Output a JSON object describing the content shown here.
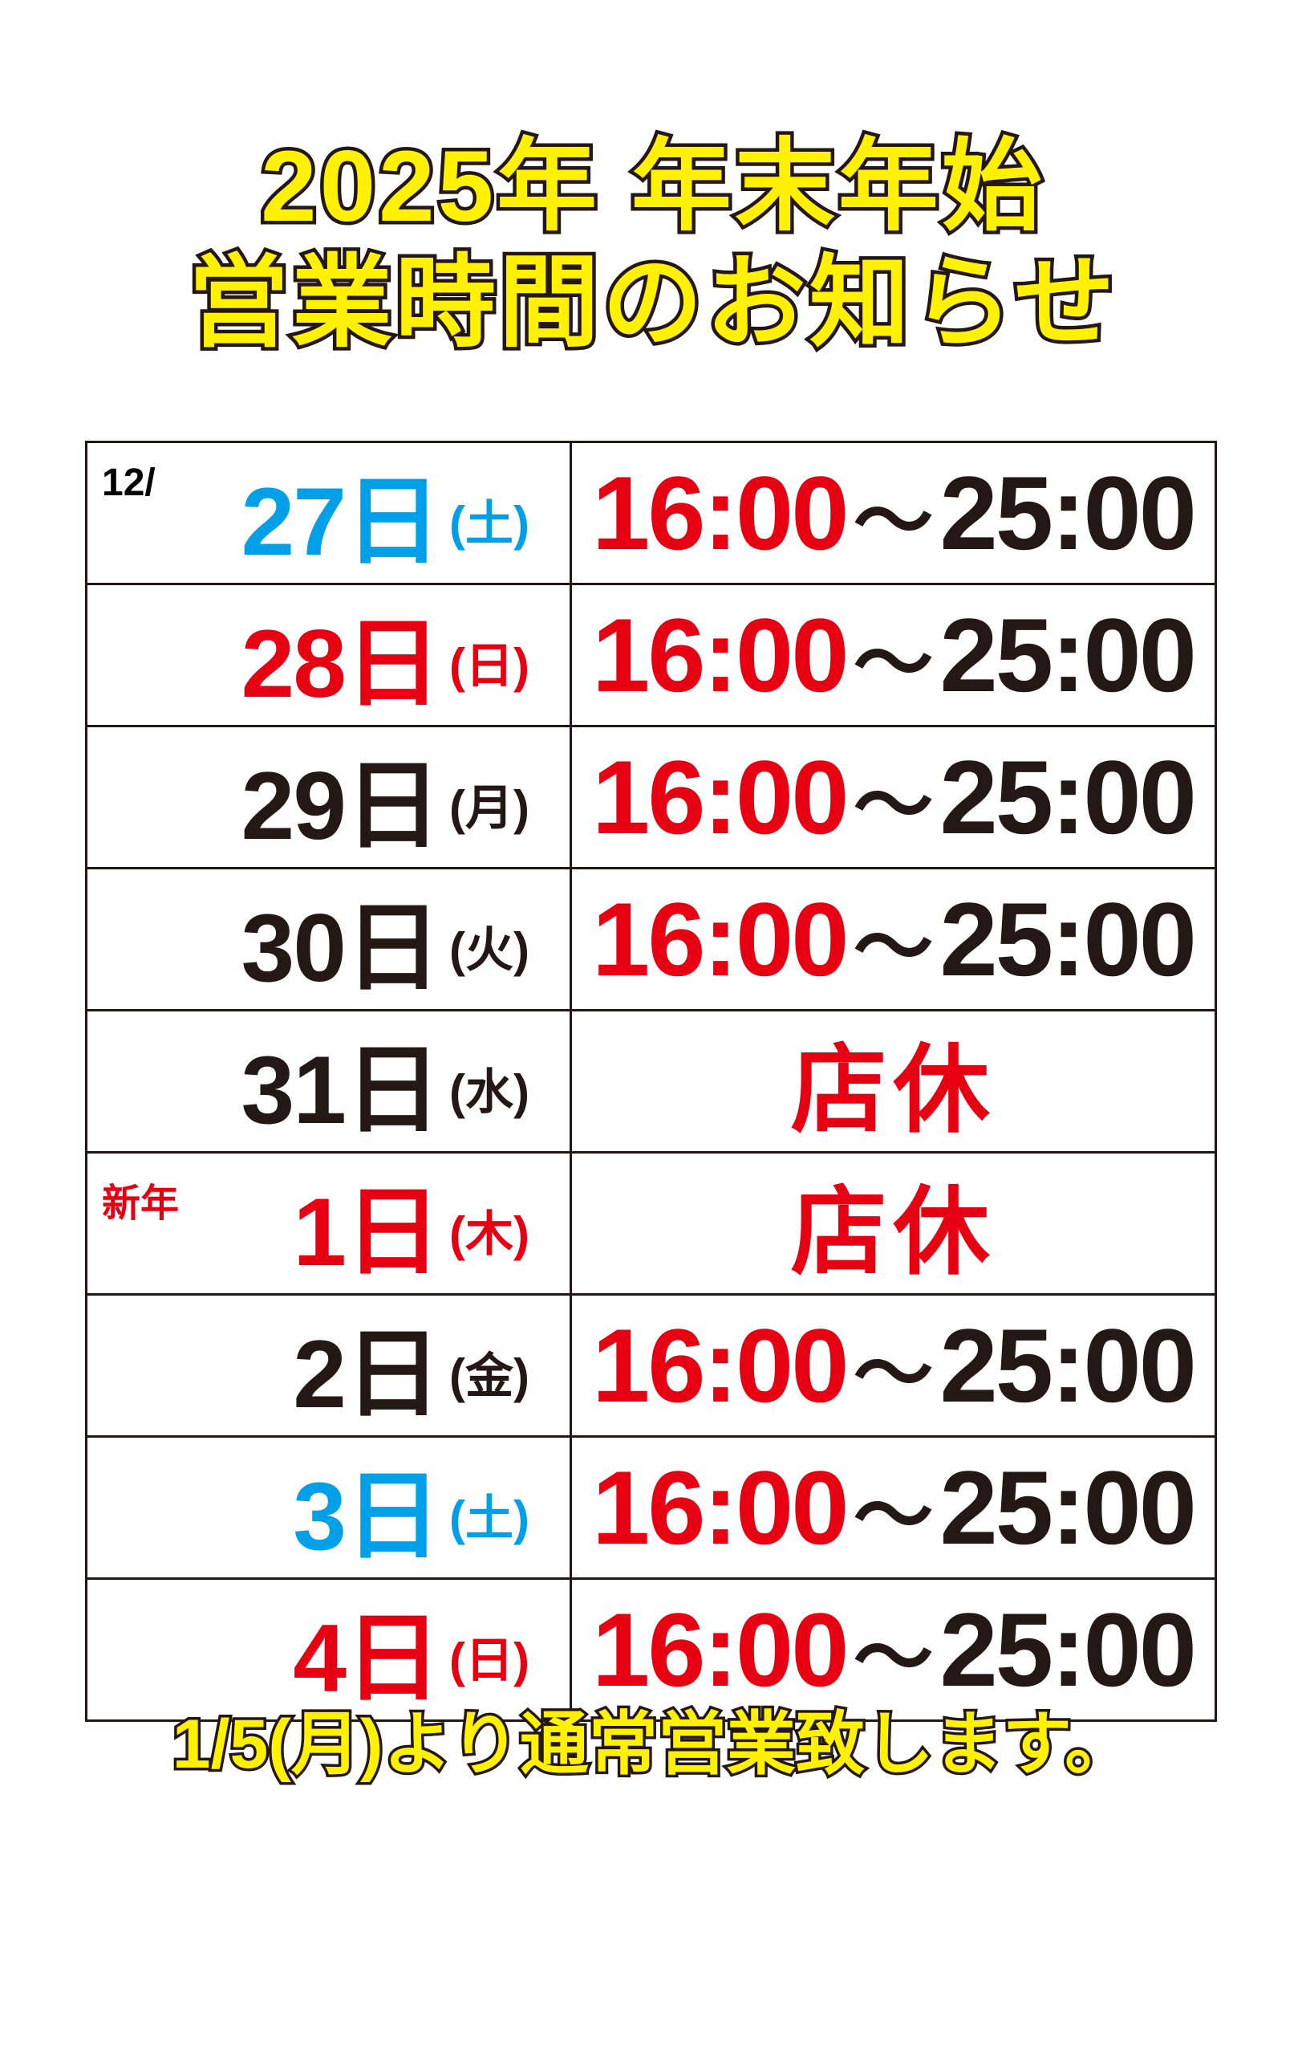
{
  "title": {
    "line1": "2025年 年末年始",
    "line2": "営業時間のお知らせ"
  },
  "colors": {
    "blue": "#00a0e9",
    "red": "#e60012",
    "black": "#231815",
    "yellow": "#fff100"
  },
  "rows": [
    {
      "prefix": "12/",
      "date": "27",
      "day": "日",
      "weekday": "(土)",
      "color": "#00a0e9",
      "open": "16:00",
      "sep": "〜",
      "close": "25:00"
    },
    {
      "prefix": "",
      "date": "28",
      "day": "日",
      "weekday": "(日)",
      "color": "#e60012",
      "open": "16:00",
      "sep": "〜",
      "close": "25:00"
    },
    {
      "prefix": "",
      "date": "29",
      "day": "日",
      "weekday": "(月)",
      "color": "#231815",
      "open": "16:00",
      "sep": "〜",
      "close": "25:00"
    },
    {
      "prefix": "",
      "date": "30",
      "day": "日",
      "weekday": "(火)",
      "color": "#231815",
      "open": "16:00",
      "sep": "〜",
      "close": "25:00"
    },
    {
      "prefix": "",
      "date": "31",
      "day": "日",
      "weekday": "(水)",
      "color": "#231815",
      "closed": "店休"
    },
    {
      "prefix": "新年",
      "date": "1",
      "day": "日",
      "weekday": "(木)",
      "color": "#e60012",
      "closed": "店休"
    },
    {
      "prefix": "",
      "date": "2",
      "day": "日",
      "weekday": "(金)",
      "color": "#231815",
      "open": "16:00",
      "sep": "〜",
      "close": "25:00"
    },
    {
      "prefix": "",
      "date": "3",
      "day": "日",
      "weekday": "(土)",
      "color": "#00a0e9",
      "open": "16:00",
      "sep": "〜",
      "close": "25:00"
    },
    {
      "prefix": "",
      "date": "4",
      "day": "日",
      "weekday": "(日)",
      "color": "#e60012",
      "open": "16:00",
      "sep": "〜",
      "close": "25:00"
    }
  ],
  "footer": "1/5(月)より通常営業致します。"
}
